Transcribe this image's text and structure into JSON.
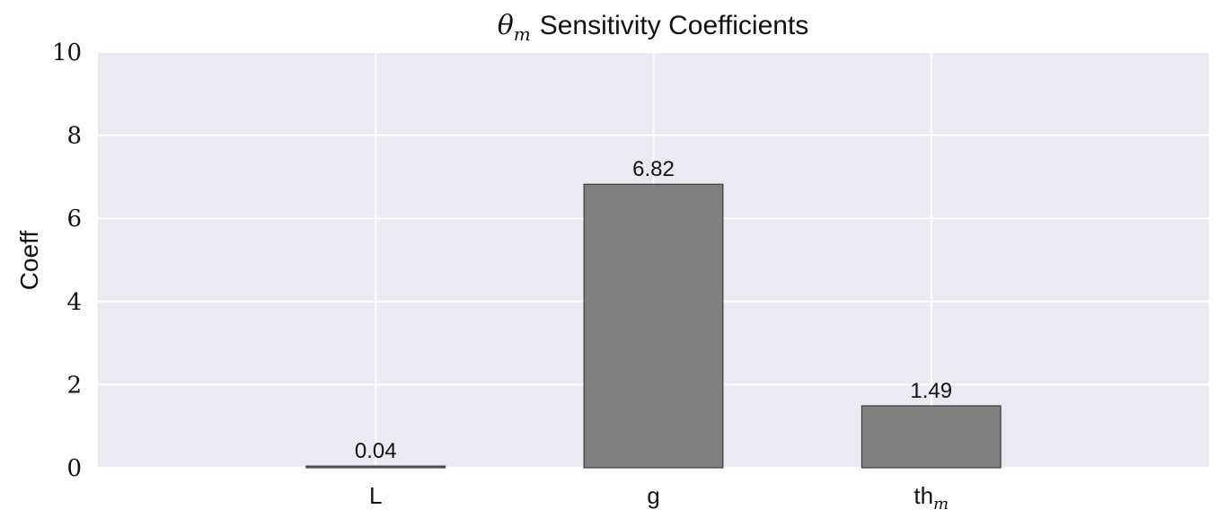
{
  "chart_data": {
    "type": "bar",
    "title_symbol": "θ",
    "title_subscript": "m",
    "title_text": "Sensitivity Coefficients",
    "xlabel": "",
    "ylabel": "Coeff",
    "categories": [
      "L",
      "g",
      "th"
    ],
    "category_subscripts": [
      "",
      "",
      "m"
    ],
    "values": [
      0.04,
      6.82,
      1.49
    ],
    "value_labels": [
      "0.04",
      "6.82",
      "1.49"
    ],
    "ylim": [
      0,
      10
    ],
    "yticks": [
      0,
      2,
      4,
      6,
      8,
      10
    ],
    "ytick_labels": [
      "0",
      "2",
      "4",
      "6",
      "8",
      "10"
    ],
    "grid": true,
    "legend": "none",
    "colors": {
      "plot_background": "#eaeaf2",
      "bar_fill": "#808080",
      "bar_edge": "#3a3a3a",
      "grid": "#ffffff",
      "text": "#111111"
    }
  }
}
